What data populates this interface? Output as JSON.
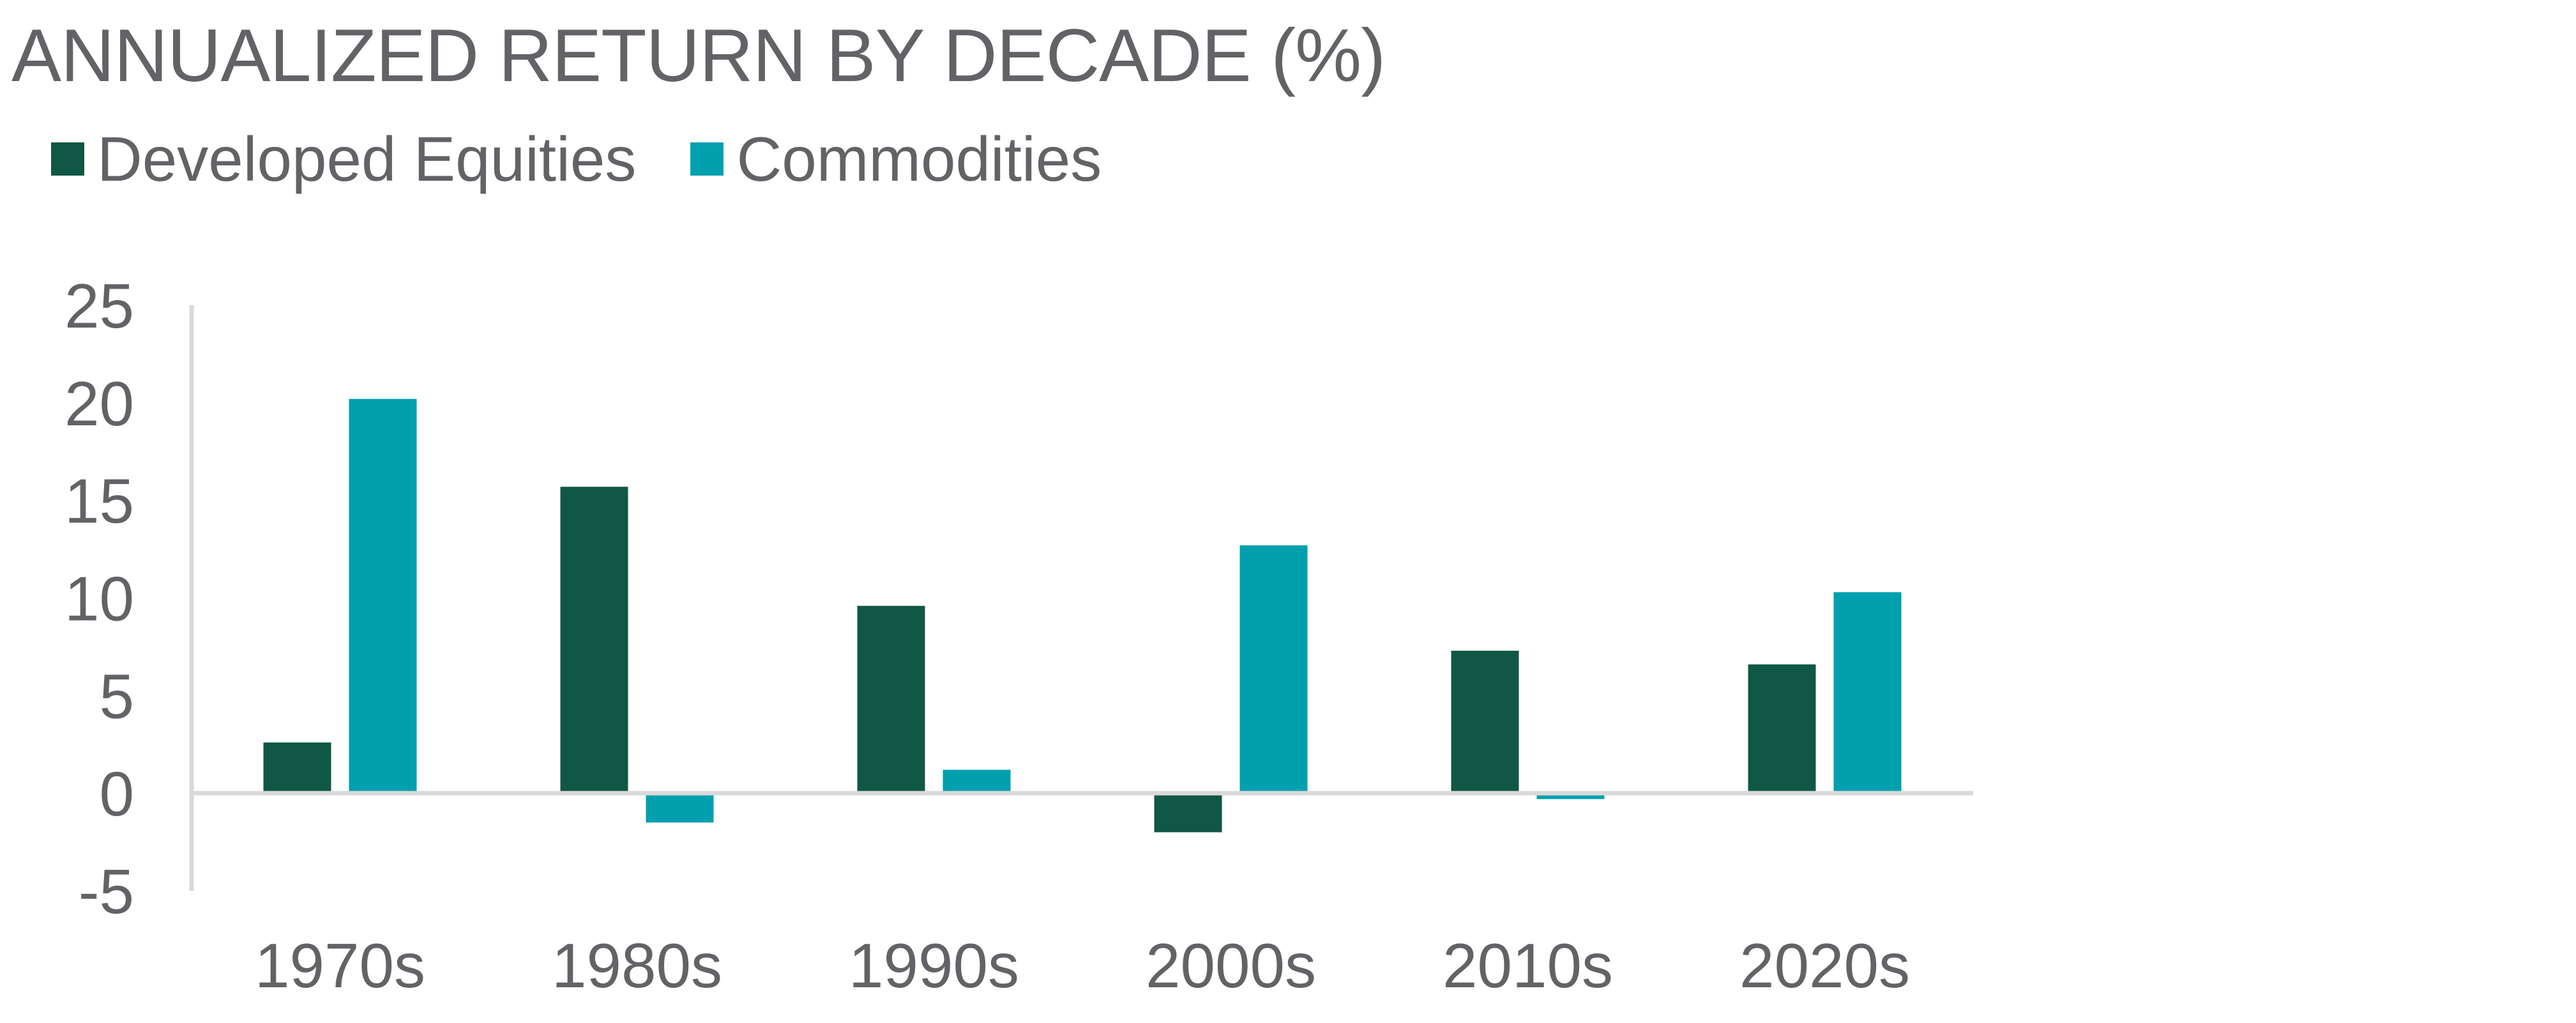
{
  "chart_data": {
    "type": "bar",
    "title": "ANNUALIZED RETURN BY DECADE (%)",
    "categories": [
      "1970s",
      "1980s",
      "1990s",
      "2000s",
      "2010s",
      "2020s"
    ],
    "series": [
      {
        "name": "Developed Equities",
        "color": "#115745",
        "values": [
          2.6,
          15.7,
          9.6,
          -2.0,
          7.3,
          6.6
        ]
      },
      {
        "name": "Commodities",
        "color": "#00A0AE",
        "values": [
          20.2,
          -1.5,
          1.2,
          12.7,
          -0.3,
          10.3
        ]
      }
    ],
    "ylim": [
      -5,
      25
    ],
    "yticks": [
      "25",
      "20",
      "15",
      "10",
      "5",
      "0",
      "-5"
    ],
    "ytick_values": [
      25,
      20,
      15,
      10,
      5,
      0,
      -5
    ],
    "legend_position": "top-left",
    "grid": false,
    "axis_color": "#D9D9D9"
  }
}
